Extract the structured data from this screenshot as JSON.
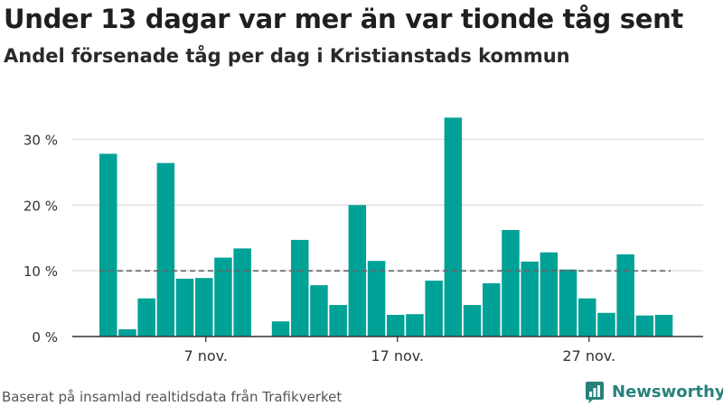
{
  "title": "Under 13 dagar var mer än var tionde tåg sent",
  "subtitle": "Andel försenade tåg per dag i Kristianstads kommun",
  "source": "Baserat på insamlad realtidsdata från Trafikverket",
  "brand": {
    "name": "Newsworthy",
    "icon": "newsworthy-logo-icon"
  },
  "colors": {
    "bar": "#00a196",
    "reference_line": "#666666",
    "grid": "#dddddd",
    "axis": "#333333"
  },
  "chart_data": {
    "type": "bar",
    "categories": [
      "2 nov.",
      "3 nov.",
      "4 nov.",
      "5 nov.",
      "6 nov.",
      "7 nov.",
      "8 nov.",
      "9 nov.",
      "10 nov.",
      "11 nov.",
      "12 nov.",
      "13 nov.",
      "14 nov.",
      "15 nov.",
      "16 nov.",
      "17 nov.",
      "18 nov.",
      "19 nov.",
      "20 nov.",
      "21 nov.",
      "22 nov.",
      "23 nov.",
      "24 nov.",
      "25 nov.",
      "26 nov.",
      "27 nov.",
      "28 nov.",
      "29 nov.",
      "30 nov."
    ],
    "values": [
      27.8,
      1.1,
      5.8,
      26.4,
      8.8,
      8.9,
      12.0,
      13.4,
      null,
      2.3,
      14.7,
      7.8,
      4.8,
      20.0,
      11.5,
      3.3,
      3.4,
      8.5,
      33.3,
      4.8,
      8.1,
      16.2,
      11.4,
      12.8,
      10.2,
      5.8,
      3.6,
      12.5,
      3.2
    ],
    "extra_values": [
      3.3
    ],
    "reference_line": 10,
    "ylim": [
      0,
      35
    ],
    "yticks": [
      0,
      10,
      20,
      30
    ],
    "ytick_labels": [
      "0 %",
      "10 %",
      "20 %",
      "30 %"
    ],
    "xtick_labels": [
      {
        "category": "7 nov.",
        "label": "7 nov."
      },
      {
        "category": "17 nov.",
        "label": "17 nov."
      },
      {
        "category": "27 nov.",
        "label": "27 nov."
      }
    ],
    "grid": true,
    "xlabel": "",
    "ylabel": ""
  }
}
